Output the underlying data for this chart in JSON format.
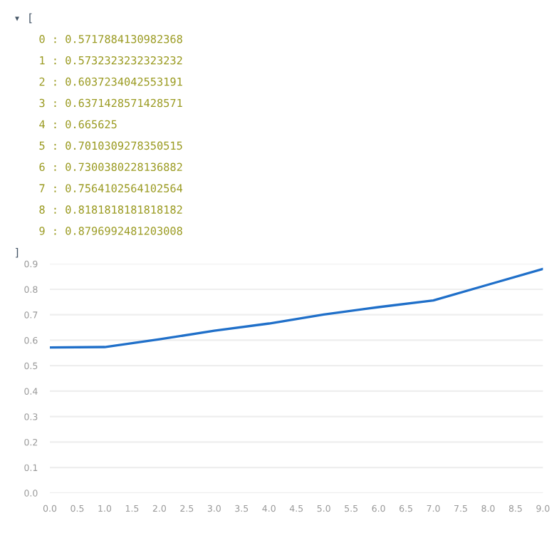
{
  "chart_data": {
    "type": "line",
    "annotations": [
      "▾ [",
      "0 : 0.5717884130982368",
      "1 : 0.5732323232323232",
      "2 : 0.6037234042553191",
      "3 : 0.6371428571428571",
      "4 : 0.665625",
      "5 : 0.7010309278350515",
      "6 : 0.7300380228136882",
      "7 : 0.7564102564102564",
      "8 : 0.8181818181818182",
      "9 : 0.8796992481203008",
      "]"
    ],
    "x": [
      0,
      1,
      2,
      3,
      4,
      5,
      6,
      7,
      8,
      9
    ],
    "series": [
      {
        "color": "#1f6fc9",
        "values": [
          0.5717884130982368,
          0.5732323232323232,
          0.6037234042553191,
          0.6371428571428571,
          0.665625,
          0.7010309278350515,
          0.7300380228136882,
          0.7564102564102564,
          0.8181818181818182,
          0.8796992481203008
        ]
      }
    ],
    "xlim": [
      0,
      9
    ],
    "xticks": [
      {
        "value": 0,
        "label": "0.0"
      },
      0.5,
      {
        "value": 1,
        "label": "1.0"
      },
      1.5,
      {
        "value": 2,
        "label": "2.0"
      },
      2.5,
      {
        "value": 3,
        "label": "3.0"
      },
      3.5,
      {
        "value": 4,
        "label": "4.0"
      },
      4.5,
      {
        "value": 5,
        "label": "5.0"
      },
      5.5,
      {
        "value": 6,
        "label": "6.0"
      },
      6.5,
      {
        "value": 7,
        "label": "7.0"
      },
      7.5,
      {
        "value": 8,
        "label": "8.0"
      },
      8.5,
      {
        "value": 9,
        "label": "9.0"
      }
    ],
    "ylim": [
      0,
      0.9
    ],
    "yticks": [
      {
        "value": 0,
        "label": "0.0"
      },
      0.1,
      0.2,
      0.3,
      0.4,
      0.5,
      0.6,
      0.7,
      0.8,
      0.9
    ],
    "grid": "y",
    "marker": "none",
    "line_style": "solid"
  }
}
